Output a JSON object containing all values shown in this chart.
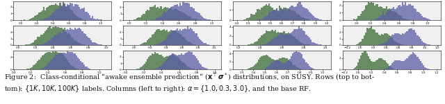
{
  "n_rows": 3,
  "n_cols": 4,
  "green_color": "#3a6b35",
  "blue_color": "#5b5ea6",
  "bg_color": "#f0f0f0",
  "fig_bg": "#ffffff",
  "caption_fontsize": 7.0,
  "seed": 42,
  "caption_line1": "Figure 2:  Class-conditional “awake ensemble prediction” ($\\mathbf{x}^\\top\\boldsymbol{\\sigma}^*$) distributions, on SUSY. Rows (top to bot-",
  "caption_line2": "tom): $\\{1K, 10K, 100K\\}$ labels. Columns (left to right): $\\alpha = \\{1.0, 0.3, 3.0\\}$, and the base RF."
}
